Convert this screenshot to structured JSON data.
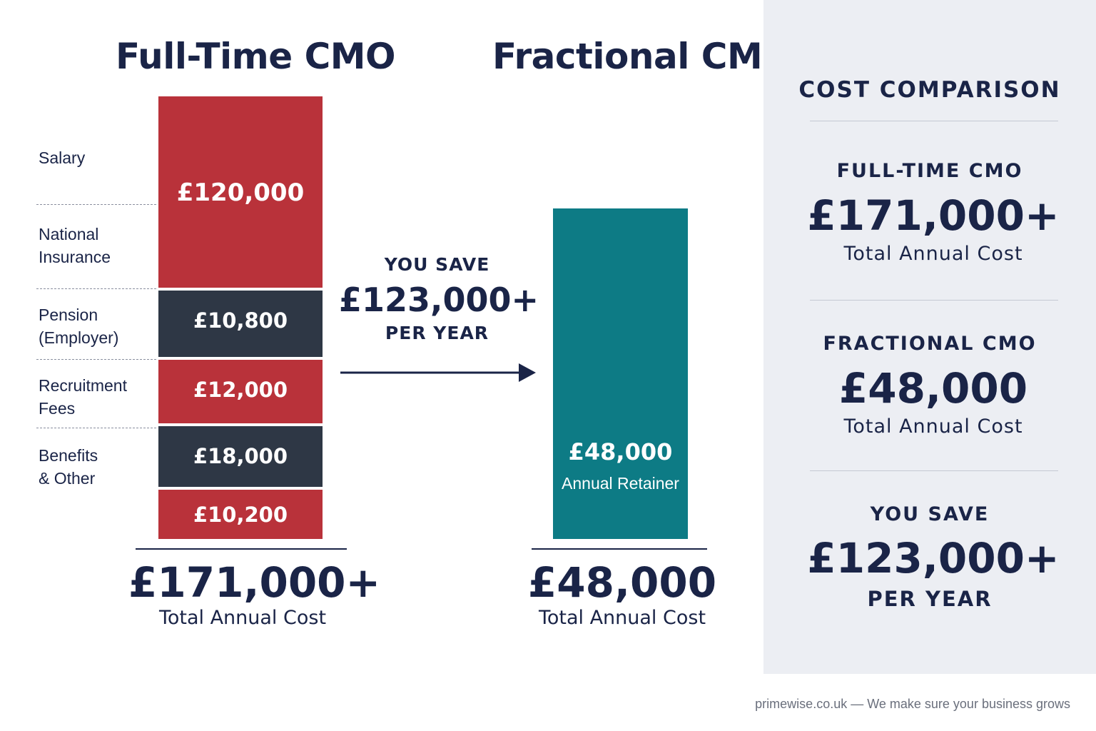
{
  "chart_data": {
    "type": "bar",
    "stacked": true,
    "categories": [
      "Full-Time CMO",
      "Fractional CMO"
    ],
    "full_time": {
      "title": "Full-Time CMO",
      "segments": [
        {
          "label": "Salary",
          "value_label": "£120,000",
          "value": 120000,
          "color": "#b9323a"
        },
        {
          "label": "National\nInsurance",
          "value_label": "",
          "value": 0,
          "color": "#b9323a"
        },
        {
          "label": "Pension\n(Employer)",
          "value_label": "£10,800",
          "value": 10800,
          "color": "#2e3745"
        },
        {
          "label": "Recruitment\nFees",
          "value_label": "£12,000",
          "value": 12000,
          "color": "#b9323a"
        },
        {
          "label": "Benefits\n& Other",
          "value_label": "£18,000",
          "value": 18000,
          "color": "#2e3745"
        },
        {
          "label": "",
          "value_label": "£10,200",
          "value": 10200,
          "color": "#b9323a"
        }
      ],
      "total": "£171,000+",
      "total_label": "Total Annual Cost"
    },
    "fractional": {
      "title": "Fractional CMO",
      "value": 48000,
      "value_label": "£48,000",
      "sub_label": "Annual Retainer",
      "color": "#0d7b85",
      "total": "£48,000",
      "total_label": "Total Annual Cost"
    },
    "savings": {
      "top": "YOU SAVE",
      "amount": "£123,000+",
      "bottom": "PER YEAR"
    }
  },
  "side_panel": {
    "heading": "COST COMPARISON",
    "blocks": [
      {
        "caption": "FULL-TIME CMO",
        "value": "£171,000+",
        "sub": "Total Annual Cost"
      },
      {
        "caption": "FRACTIONAL CMO",
        "value": "£48,000",
        "sub": "Total Annual Cost"
      },
      {
        "caption": "YOU SAVE",
        "value": "£123,000+",
        "sub": "PER YEAR"
      }
    ]
  },
  "footer": "primewise.co.uk — We make sure your business grows",
  "colors": {
    "navy": "#1a2447",
    "red": "#b9323a",
    "charcoal": "#2e3745",
    "teal": "#0d7b85",
    "panel_bg": "#eceef3"
  }
}
